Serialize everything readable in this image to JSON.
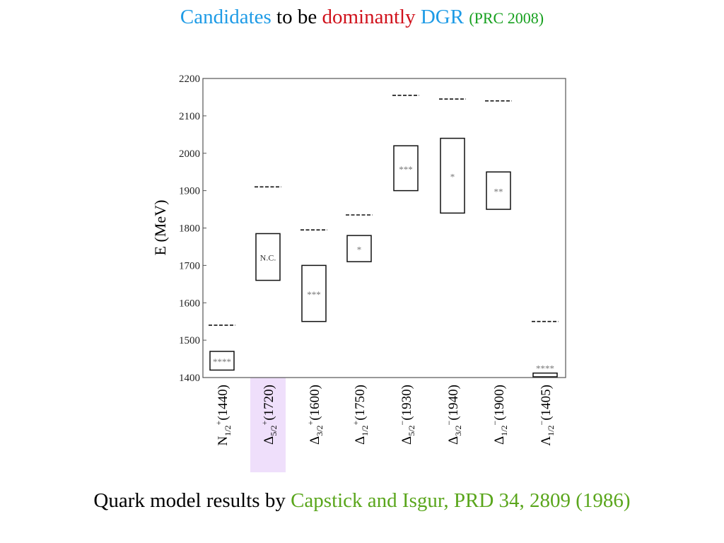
{
  "slide": {
    "title": {
      "part1": "Candidates",
      "part2": " to be ",
      "part3": "dominantly",
      "part4": " DGR ",
      "part5": "(PRC 2008)"
    },
    "footer": {
      "part1": "Quark model results by ",
      "part2": "Capstick and Isgur, PRD 34, 2809 (1986)"
    },
    "colors": {
      "blue": "#1e9be6",
      "red": "#d0121c",
      "green": "#16a01e",
      "olive_green": "#5aa61c",
      "highlight": "#efdffb"
    }
  },
  "chart_data": {
    "type": "box",
    "ylabel": "E (MeV)",
    "ylim": [
      1400,
      2200
    ],
    "yticks": [
      1400,
      1500,
      1600,
      1700,
      1800,
      1900,
      2000,
      2100,
      2200
    ],
    "grid": false,
    "highlighted_category_index": 1,
    "categories": [
      {
        "base": "N",
        "sub": "1/2",
        "sup": "+",
        "mass": "(1440)"
      },
      {
        "base": "Δ",
        "sub": "5/2",
        "sup": "+",
        "mass": "(1720)"
      },
      {
        "base": "Δ",
        "sub": "3/2",
        "sup": "+",
        "mass": "(1600)"
      },
      {
        "base": "Δ",
        "sub": "1/2",
        "sup": "+",
        "mass": "(1750)"
      },
      {
        "base": "Δ",
        "sub": "5/2",
        "sup": "−",
        "mass": "(1930)"
      },
      {
        "base": "Δ",
        "sub": "3/2",
        "sup": "−",
        "mass": "(1940)"
      },
      {
        "base": "Δ",
        "sub": "1/2",
        "sup": "−",
        "mass": "(1900)"
      },
      {
        "base": "Λ",
        "sub": "1/2",
        "sup": "−",
        "mass": "(1405)"
      }
    ],
    "boxes": [
      {
        "low": 1420,
        "high": 1470,
        "label": "****"
      },
      {
        "low": 1660,
        "high": 1785,
        "label": "N.C."
      },
      {
        "low": 1550,
        "high": 1700,
        "label": "***"
      },
      {
        "low": 1710,
        "high": 1780,
        "label": "*"
      },
      {
        "low": 1900,
        "high": 2020,
        "label": "***"
      },
      {
        "low": 1840,
        "high": 2040,
        "label": "*"
      },
      {
        "low": 1850,
        "high": 1950,
        "label": "**"
      },
      {
        "low": 1402,
        "high": 1412,
        "label": "****"
      }
    ],
    "quark_model_values": [
      1540,
      1910,
      1795,
      1835,
      2155,
      2145,
      2140,
      1550
    ]
  }
}
